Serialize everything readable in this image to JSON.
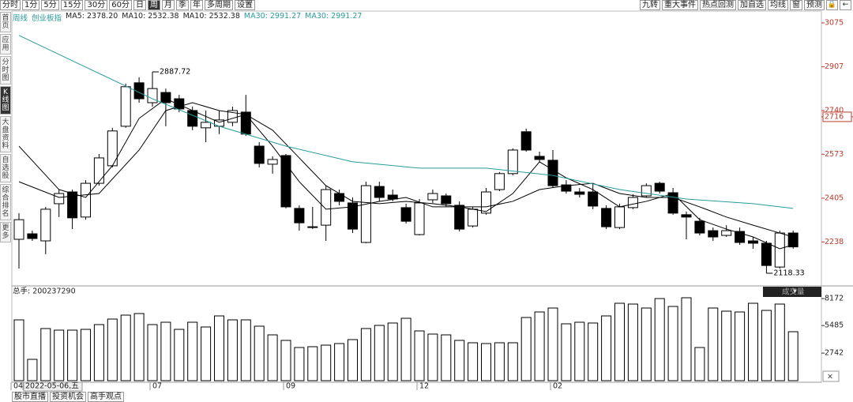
{
  "toolbar": {
    "periods": [
      "分时",
      "1分",
      "5分",
      "15分",
      "30分",
      "60分",
      "日",
      "周",
      "月",
      "季",
      "年",
      "多周期",
      "设置"
    ],
    "tools": [
      "九转",
      "重大事件",
      "热点回测",
      "加自选",
      "均线",
      "窗",
      "预测"
    ]
  },
  "sidebar": [
    "首页",
    "应用",
    "分时图",
    "K线图",
    "大盘资料",
    "自选股",
    "综合排名",
    "更多"
  ],
  "legend": [
    "周线",
    "创业板指",
    "MA5: 2378.20",
    "MA10: 2532.38",
    "MA10: 2532.38",
    "MA30: 2991.27",
    "MA30: 2991.27"
  ],
  "chart_data": [
    {
      "type": "candlestick",
      "open": [
        2248,
        2269,
        2242,
        2384,
        2429,
        2333,
        2462,
        2529,
        2680,
        2846,
        2770,
        2809,
        2785,
        2740,
        2674,
        2680,
        2695,
        2734,
        2604,
        2535,
        2568,
        2366,
        2293,
        2302,
        2423,
        2387,
        2236,
        2450,
        2417,
        2369,
        2266,
        2399,
        2414,
        2378,
        2299,
        2348,
        2438,
        2499,
        2659,
        2565,
        2550,
        2456,
        2429,
        2429,
        2366,
        2293,
        2369,
        2414,
        2462,
        2426,
        2342,
        2317,
        2281,
        2263,
        2278,
        2242,
        2233,
        2142,
        2272
      ],
      "high": [
        2348,
        2281,
        2372,
        2438,
        2438,
        2474,
        2574,
        2674,
        2843,
        2867,
        2887.72,
        2824,
        2800,
        2755,
        2740,
        2740,
        2755,
        2800,
        2619,
        2565,
        2574,
        2378,
        2372,
        2453,
        2438,
        2408,
        2468,
        2468,
        2438,
        2384,
        2402,
        2438,
        2423,
        2393,
        2372,
        2444,
        2505,
        2595,
        2671,
        2583,
        2589,
        2474,
        2444,
        2462,
        2378,
        2384,
        2420,
        2462,
        2468,
        2444,
        2354,
        2330,
        2293,
        2302,
        2293,
        2257,
        2242,
        2281,
        2281
      ],
      "low": [
        2136,
        2242,
        2191,
        2333,
        2287,
        2323,
        2453,
        2523,
        2674,
        2770,
        2755,
        2680,
        2734,
        2665,
        2619,
        2650,
        2680,
        2643,
        2523,
        2499,
        2366,
        2281,
        2287,
        2242,
        2378,
        2272,
        2233,
        2393,
        2393,
        2308,
        2263,
        2387,
        2372,
        2278,
        2293,
        2342,
        2432,
        2492,
        2583,
        2544,
        2444,
        2423,
        2408,
        2363,
        2287,
        2287,
        2363,
        2408,
        2423,
        2342,
        2248,
        2263,
        2242,
        2257,
        2227,
        2212,
        2118.33,
        2136,
        2212
      ],
      "close": [
        2323,
        2251,
        2363,
        2423,
        2330,
        2462,
        2559,
        2662,
        2831,
        2785,
        2824,
        2770,
        2746,
        2680,
        2695,
        2704,
        2740,
        2650,
        2538,
        2553,
        2372,
        2311,
        2296,
        2438,
        2393,
        2287,
        2453,
        2408,
        2402,
        2317,
        2387,
        2423,
        2384,
        2287,
        2363,
        2429,
        2499,
        2589,
        2589,
        2553,
        2453,
        2432,
        2420,
        2375,
        2296,
        2372,
        2408,
        2453,
        2432,
        2348,
        2333,
        2272,
        2257,
        2281,
        2236,
        2233,
        2148,
        2272,
        2219
      ],
      "colors": {
        "up": "#ffffff",
        "down": "#000000",
        "outline": "#000000"
      },
      "lines": [
        {
          "color": "#000000",
          "x": [
            0,
            3,
            5,
            7,
            9,
            11,
            13,
            15,
            17,
            19,
            21,
            23,
            25,
            27,
            29,
            31,
            33,
            35,
            37,
            39,
            41,
            43,
            45,
            47,
            49,
            51,
            53,
            55,
            57,
            58
          ],
          "values": [
            2604,
            2438,
            2408,
            2529,
            2710,
            2785,
            2740,
            2695,
            2725,
            2604,
            2468,
            2363,
            2372,
            2393,
            2408,
            2372,
            2372,
            2354,
            2423,
            2544,
            2483,
            2438,
            2372,
            2393,
            2423,
            2323,
            2287,
            2257,
            2212,
            2227
          ]
        },
        {
          "color": "#000000",
          "x": [
            0,
            3,
            6,
            9,
            11,
            13,
            15,
            17,
            19,
            21,
            23,
            25,
            27,
            29,
            31,
            33,
            35,
            37,
            39,
            41,
            43,
            45,
            47,
            49,
            51,
            53,
            55,
            57,
            58
          ],
          "values": [
            2468,
            2408,
            2423,
            2589,
            2740,
            2770,
            2740,
            2725,
            2665,
            2559,
            2453,
            2393,
            2384,
            2393,
            2384,
            2372,
            2372,
            2393,
            2438,
            2453,
            2462,
            2423,
            2408,
            2408,
            2372,
            2333,
            2302,
            2272,
            2257
          ]
        },
        {
          "color": "#2a9b9b",
          "x": [
            0,
            5,
            10,
            15,
            20,
            25,
            30,
            35,
            40,
            45,
            50,
            55,
            58
          ],
          "values": [
            3027,
            2906,
            2785,
            2680,
            2604,
            2544,
            2520,
            2520,
            2492,
            2438,
            2402,
            2384,
            2366
          ]
        }
      ],
      "annotations": [
        {
          "index": 10,
          "value": 2887.72
        },
        {
          "index": 56,
          "value": 2118.33
        }
      ],
      "price_marker": 2716,
      "ylim": [
        2076,
        3102
      ],
      "yticks": [
        3075,
        2907,
        2740,
        2573,
        2405,
        2238
      ],
      "axis_color": "#c0392b"
    },
    {
      "type": "bar",
      "label": "总手: 200237290",
      "legend": "成交量",
      "values": [
        6052,
        2122,
        5188,
        5030,
        5030,
        5109,
        5581,
        6131,
        6524,
        6681,
        5581,
        5816,
        5109,
        5816,
        5345,
        6445,
        6052,
        6052,
        5423,
        4559,
        4009,
        3301,
        3380,
        3537,
        3694,
        4087,
        5188,
        5502,
        5738,
        6209,
        4952,
        4637,
        4559,
        4009,
        3773,
        3694,
        3773,
        3773,
        6288,
        6838,
        7231,
        5659,
        5816,
        5738,
        6445,
        7703,
        7624,
        7231,
        8172,
        7388,
        8253,
        3301,
        7231,
        6917,
        6838,
        7703,
        6995,
        7624,
        4873
      ],
      "color": "#ffffff",
      "outline": "#000000",
      "ylim": [
        0,
        8567
      ],
      "yticks": [
        8172,
        5485,
        2742
      ]
    }
  ],
  "x_labels": [
    "04",
    "2022-05-06,五",
    "07",
    "09",
    "12",
    "02"
  ],
  "tabs": [
    "股市直播",
    "投资机会",
    "高手观点"
  ]
}
